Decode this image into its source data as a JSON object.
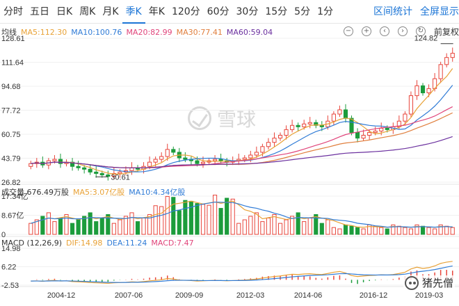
{
  "tabs": [
    "分时",
    "五日",
    "日K",
    "周K",
    "月K",
    "季K",
    "年K",
    "120分",
    "60分",
    "30分",
    "15分",
    "5分",
    "1分"
  ],
  "active_tab": "季K",
  "header_right": {
    "range_stats": "区间统计",
    "fullscreen": "全屏显示"
  },
  "price_legend": {
    "label": "均线",
    "items": [
      {
        "text": "MA5:112.30",
        "color": "#e8a135"
      },
      {
        "text": "MA10:100.76",
        "color": "#2f7bd6"
      },
      {
        "text": "MA20:82.99",
        "color": "#e0447a"
      },
      {
        "text": "MA30:77.41",
        "color": "#e07e3c"
      },
      {
        "text": "MA60:59.04",
        "color": "#6a2f9e"
      }
    ]
  },
  "adjust_label": "前复权",
  "tool_icons": [
    "minus-icon",
    "plus-icon",
    "left-icon",
    "right-icon",
    "reset-icon"
  ],
  "price_axis": {
    "ticks": [
      "128.61",
      "111.64",
      "94.68",
      "77.72",
      "60.75",
      "43.79",
      "26.82"
    ],
    "values": [
      128.61,
      111.64,
      94.68,
      77.72,
      60.75,
      43.79,
      26.82
    ]
  },
  "annotations": {
    "high": "124.82",
    "low": "30.61"
  },
  "volume_legend": {
    "items": [
      {
        "text": "成交量 676.49万股",
        "color": "#333333"
      },
      {
        "text": "MA5:3.07亿股",
        "color": "#e8a135"
      },
      {
        "text": "MA10:4.34亿股",
        "color": "#2f7bd6"
      }
    ]
  },
  "volume_axis": {
    "ticks": [
      "17.34亿",
      "8.67亿",
      "0"
    ]
  },
  "macd_legend": {
    "items": [
      {
        "text": "MACD (12,26,9)",
        "color": "#333333"
      },
      {
        "text": "DIF:14.98",
        "color": "#e8a135"
      },
      {
        "text": "DEA:11.24",
        "color": "#2f7bd6"
      },
      {
        "text": "MACD:7.47",
        "color": "#e0447a"
      }
    ]
  },
  "macd_axis": {
    "ticks": [
      "14.98",
      "6.22",
      "-2.53"
    ]
  },
  "date_axis": {
    "ticks": [
      "2004-12",
      "2007-06",
      "2009-09",
      "2012-03",
      "2014-06",
      "2016-12",
      "2019-03"
    ]
  },
  "watermark": "雪球",
  "credit": "猪先僧",
  "colors": {
    "up": "#e8443a",
    "down": "#1c9c3c",
    "accent": "#1a74d6"
  },
  "chart_data": {
    "type": "candlestick",
    "x": [
      "2004-12",
      "2007-06",
      "2009-09",
      "2012-03",
      "2014-06",
      "2016-12",
      "2019-03"
    ],
    "ylim": [
      26.82,
      128.61
    ],
    "high_label": 124.82,
    "low_label": 30.61,
    "indicators": {
      "MA5": 112.3,
      "MA10": 100.76,
      "MA20": 82.99,
      "MA30": 77.41,
      "MA60": 59.04,
      "volume": "676.49万股",
      "vol_MA5": "3.07亿股",
      "vol_MA10": "4.34亿股",
      "DIF": 14.98,
      "DEA": 11.24,
      "MACD": 7.47
    }
  }
}
